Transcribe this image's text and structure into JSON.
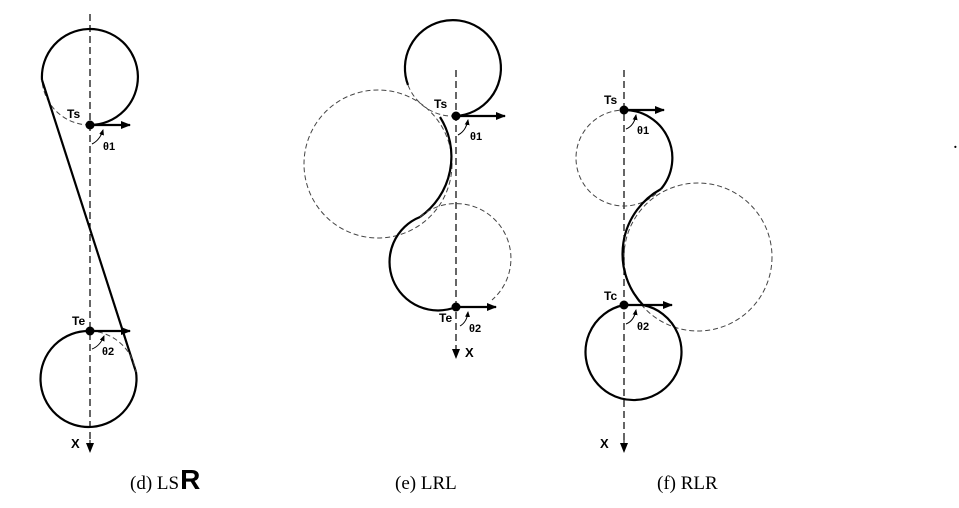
{
  "panels": [
    {
      "id": "d",
      "caption_prefix": "(d) LS",
      "caption_handwritten": "R",
      "start_label": "Ts",
      "end_label": "Te",
      "angle1": "θ1",
      "angle2": "θ2",
      "axis_label": "X"
    },
    {
      "id": "e",
      "caption_prefix": "(e) LRL",
      "start_label": "Ts",
      "end_label": "Te",
      "angle1": "θ1",
      "angle2": "θ2",
      "axis_label": "X"
    },
    {
      "id": "f",
      "caption_prefix": "(f) RLR",
      "start_label": "Ts",
      "end_label": "Tc",
      "angle1": "θ1",
      "angle2": "θ2",
      "axis_label": "X"
    }
  ],
  "stray_mark": "."
}
